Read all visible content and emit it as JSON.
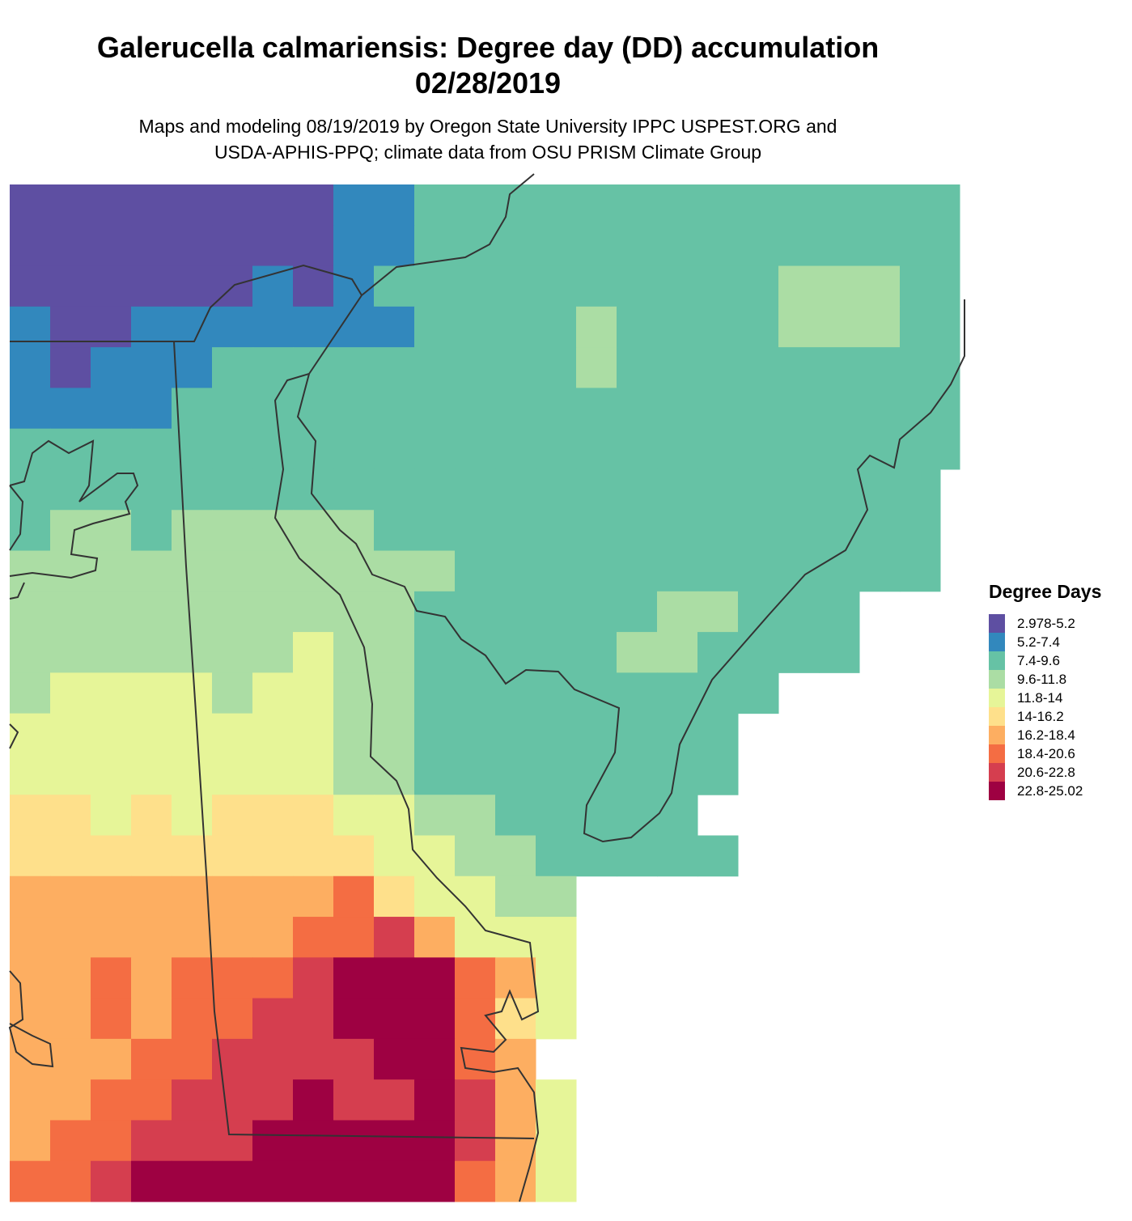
{
  "title": {
    "line1": "Galerucella calmariensis: Degree day (DD) accumulation",
    "line2": "02/28/2019"
  },
  "subtitle": {
    "line1": "Maps and modeling 08/19/2019 by Oregon State University IPPC USPEST.ORG and",
    "line2": "USDA-APHIS-PPQ; climate data from OSU PRISM Climate Group"
  },
  "legend": {
    "title": "Degree Days",
    "items": [
      {
        "label": "2.978-5.2",
        "color": "#5e4fa2"
      },
      {
        "label": "5.2-7.4",
        "color": "#3288bd"
      },
      {
        "label": "7.4-9.6",
        "color": "#66c2a5"
      },
      {
        "label": "9.6-11.8",
        "color": "#abdda4"
      },
      {
        "label": "11.8-14",
        "color": "#e6f598"
      },
      {
        "label": "14-16.2",
        "color": "#fee08b"
      },
      {
        "label": "16.2-18.4",
        "color": "#fdae61"
      },
      {
        "label": "18.4-20.6",
        "color": "#f46d43"
      },
      {
        "label": "20.6-22.8",
        "color": "#d53e4f"
      },
      {
        "label": "22.8-25.02",
        "color": "#9e0142"
      }
    ]
  },
  "chart_data": {
    "type": "heatmap",
    "description_of_values": "each character is the legend class index (0-9) of a raster cell; '.' = no data",
    "grid": [
      "000000001122222222222222",
      "000000001122222222222222",
      "000000101222222222233322",
      "100111111122223222233322",
      "101112222222223222222222",
      "111122222222222222222222",
      "222222222222222222222222",
      "22222222222222222222222.",
      "23323333322222222222222.",
      "33333333333222222222222..",
      "333333333322222233222...",
      "333333343322222332222....",
      "3444434433222222222.....",
      "444444443322222222......",
      "444444443322222222......",
      "55454555443322222.......",
      "555555555443322222......",
      "66666666754433..........",
      "66666667786444..........",
      "66767778999764..........",
      "66767788999754..........",
      "6667788889976...........",
      "66778889889864..........",
      "67788899999864..........",
      "77899999999764.........."
    ]
  }
}
